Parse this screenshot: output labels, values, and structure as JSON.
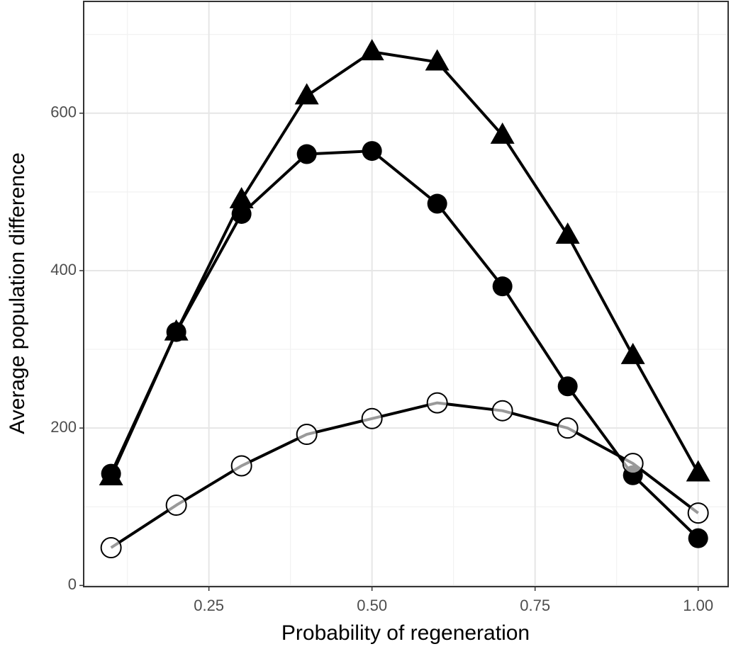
{
  "chart_data": {
    "type": "line",
    "x_label": "Probability of regeneration",
    "y_label": "Average population difference",
    "x": [
      0.1,
      0.2,
      0.3,
      0.4,
      0.5,
      0.6,
      0.7,
      0.8,
      0.9,
      1.0
    ],
    "series": [
      {
        "marker": "triangle",
        "color": "#000000",
        "values": [
          138,
          322,
          490,
          622,
          678,
          665,
          572,
          445,
          292,
          143
        ]
      },
      {
        "marker": "circle",
        "color": "#000000",
        "values": [
          142,
          322,
          472,
          548,
          552,
          485,
          380,
          253,
          140,
          60
        ]
      },
      {
        "marker": "open-circle",
        "color": "#000000",
        "values": [
          48,
          102,
          152,
          192,
          212,
          232,
          222,
          200,
          155,
          92
        ]
      }
    ],
    "xlim": [
      0.058,
      1.046
    ],
    "ylim": [
      -1.5,
      742
    ],
    "xticks": [
      0.25,
      {
        "value": 0.5,
        "label": "0.50"
      },
      0.75,
      {
        "value": 1,
        "label": "1.00"
      }
    ],
    "yticks": [
      0,
      200,
      400,
      600
    ],
    "x_minor_ticks": [
      0.125,
      0.375,
      0.625,
      0.875
    ],
    "y_minor_ticks": [
      100,
      300,
      500,
      700
    ],
    "grid": true
  }
}
